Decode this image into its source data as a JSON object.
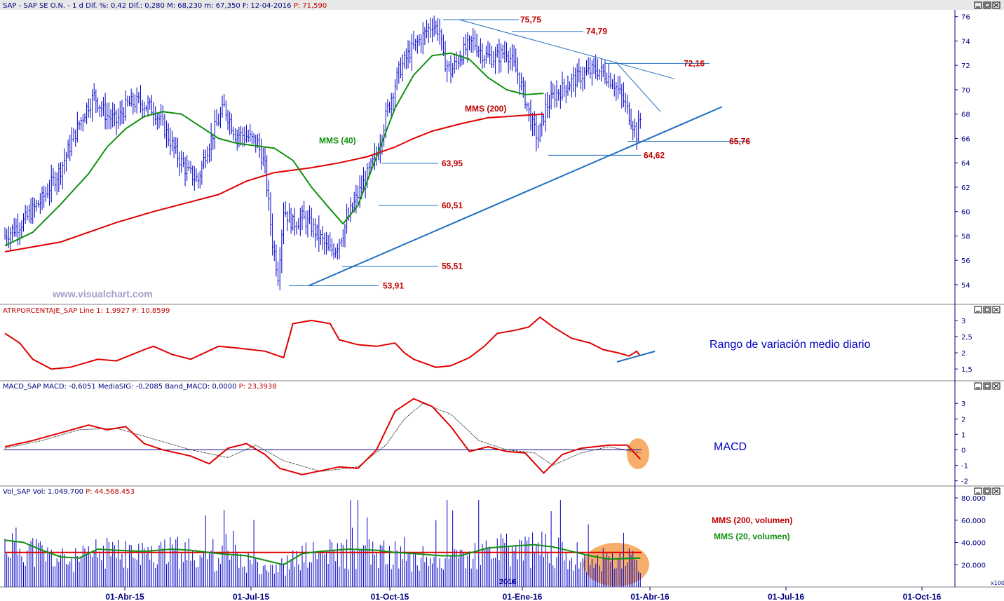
{
  "header": {
    "price": "SAP - SAP SE O.N. - 1 d Dif. %: 0,42 Dif.: 0,280 M: 68,230 m: 67,350 F: 12-04-2016",
    "price_p": "P: 71,590",
    "atr": "ATRPORCENTAJE_SAP Line 1: 1,9927",
    "atr_p": "P: 10,8599",
    "macd": "MACD_SAP MACD: -0,6051 MediaSIG: -0,2085 Band_MACD: 0,0000",
    "macd_p": "P: 23,3938",
    "vol": "Vol_SAP Vol: 1.049.700",
    "vol_p": "P: 44.568.453"
  },
  "watermark": "www.visualchart.com",
  "year_label": "2016",
  "vol_scale": "x100",
  "colors": {
    "price_bars": "#0000c8",
    "mms200": "#e00000",
    "mms40": "#109010",
    "trend": "#1f6fc0",
    "macd": "#e00000",
    "highlight": "#f5a050",
    "note": "#0000c0"
  },
  "chart_data": [
    {
      "type": "line",
      "title": "SAP - SAP SE O.N.",
      "y_ticks": [
        54,
        56,
        58,
        60,
        62,
        64,
        66,
        68,
        70,
        72,
        74,
        76
      ],
      "ylim": [
        52.5,
        76.5
      ],
      "x_ticks": [
        "01-Abr-15",
        "01-Jul-15",
        "01-Oct-15",
        "01-Ene-16",
        "01-Abr-16",
        "01-Jul-16",
        "01-Oct-16"
      ],
      "series": [
        {
          "name": "MMS (40)",
          "points": [
            [
              0,
              57.2
            ],
            [
              15,
              58.3
            ],
            [
              30,
              60.6
            ],
            [
              45,
              63.1
            ],
            [
              55,
              65.3
            ],
            [
              65,
              66.8
            ],
            [
              75,
              67.8
            ],
            [
              85,
              68.2
            ],
            [
              95,
              68.0
            ],
            [
              105,
              67.0
            ],
            [
              115,
              66.0
            ],
            [
              125,
              65.6
            ],
            [
              135,
              65.4
            ],
            [
              145,
              65.2
            ],
            [
              155,
              64.2
            ],
            [
              165,
              62.0
            ],
            [
              175,
              60.2
            ],
            [
              182,
              59.0
            ],
            [
              190,
              60.5
            ],
            [
              200,
              64.5
            ],
            [
              210,
              68.5
            ],
            [
              220,
              71.2
            ],
            [
              230,
              72.8
            ],
            [
              240,
              73.0
            ],
            [
              250,
              72.5
            ],
            [
              260,
              71.0
            ],
            [
              270,
              70.0
            ],
            [
              280,
              69.6
            ],
            [
              290,
              69.7
            ]
          ]
        },
        {
          "name": "MMS (200)",
          "points": [
            [
              0,
              56.7
            ],
            [
              30,
              57.5
            ],
            [
              60,
              59.1
            ],
            [
              80,
              60.0
            ],
            [
              100,
              60.8
            ],
            [
              115,
              61.4
            ],
            [
              130,
              62.5
            ],
            [
              145,
              63.2
            ],
            [
              165,
              63.6
            ],
            [
              180,
              64.0
            ],
            [
              195,
              64.5
            ],
            [
              210,
              65.3
            ],
            [
              220,
              66.0
            ],
            [
              230,
              66.6
            ],
            [
              245,
              67.2
            ],
            [
              260,
              67.7
            ],
            [
              270,
              67.8
            ],
            [
              280,
              67.9
            ],
            [
              290,
              68.0
            ]
          ]
        },
        {
          "name": "price",
          "points": [
            [
              0,
              58.0
            ],
            [
              10,
              59.2
            ],
            [
              20,
              61.0
            ],
            [
              30,
              63.5
            ],
            [
              38,
              66.5
            ],
            [
              44,
              68.5
            ],
            [
              48,
              69.5
            ],
            [
              54,
              68.0
            ],
            [
              60,
              67.4
            ],
            [
              66,
              68.8
            ],
            [
              72,
              69.0
            ],
            [
              80,
              68.4
            ],
            [
              86,
              66.8
            ],
            [
              92,
              64.8
            ],
            [
              98,
              63.3
            ],
            [
              104,
              62.6
            ],
            [
              108,
              64.8
            ],
            [
              113,
              66.8
            ],
            [
              118,
              68.6
            ],
            [
              124,
              66.4
            ],
            [
              130,
              66.2
            ],
            [
              136,
              65.6
            ],
            [
              140,
              63.6
            ],
            [
              144,
              57.5
            ],
            [
              147,
              54.8
            ],
            [
              150,
              60.2
            ],
            [
              155,
              59.0
            ],
            [
              160,
              59.5
            ],
            [
              165,
              58.8
            ],
            [
              170,
              57.8
            ],
            [
              174,
              56.8
            ],
            [
              178,
              57.0
            ],
            [
              182,
              58.3
            ],
            [
              186,
              60.0
            ],
            [
              192,
              62.0
            ],
            [
              200,
              64.6
            ],
            [
              206,
              68.4
            ],
            [
              212,
              71.5
            ],
            [
              218,
              73.1
            ],
            [
              224,
              74.2
            ],
            [
              230,
              75.4
            ],
            [
              234,
              74.8
            ],
            [
              236,
              72.5
            ],
            [
              240,
              71.5
            ],
            [
              246,
              73.0
            ],
            [
              252,
              74.0
            ],
            [
              258,
              72.8
            ],
            [
              264,
              72.6
            ],
            [
              270,
              73.2
            ],
            [
              276,
              71.3
            ],
            [
              280,
              69.3
            ],
            [
              284,
              67.0
            ],
            [
              287,
              66.0
            ],
            [
              291,
              68.5
            ],
            [
              296,
              69.6
            ],
            [
              302,
              70.3
            ],
            [
              306,
              70.8
            ],
            [
              312,
              71.3
            ],
            [
              318,
              71.7
            ],
            [
              324,
              71.2
            ],
            [
              328,
              70.5
            ],
            [
              333,
              69.1
            ],
            [
              337,
              67.6
            ],
            [
              340,
              66.4
            ],
            [
              342,
              67.6
            ]
          ]
        }
      ],
      "levels": [
        75.75,
        74.79,
        72.16,
        65.76,
        64.62,
        63.95,
        60.51,
        55.51,
        53.91
      ],
      "annotations": [
        "MMS (40)",
        "MMS (200)"
      ]
    },
    {
      "type": "line",
      "title": "ATRPORCENTAJE_SAP",
      "y_ticks": [
        "1,5",
        "2",
        "2,5",
        "3"
      ],
      "ylim": [
        1.2,
        3.15
      ],
      "series": [
        {
          "name": "Line 1",
          "points": [
            [
              0,
              2.6
            ],
            [
              8,
              2.3
            ],
            [
              15,
              1.8
            ],
            [
              25,
              1.5
            ],
            [
              35,
              1.55
            ],
            [
              50,
              1.8
            ],
            [
              60,
              1.75
            ],
            [
              75,
              2.1
            ],
            [
              80,
              2.2
            ],
            [
              90,
              1.95
            ],
            [
              100,
              1.8
            ],
            [
              115,
              2.2
            ],
            [
              125,
              2.15
            ],
            [
              140,
              2.05
            ],
            [
              150,
              1.85
            ],
            [
              155,
              2.9
            ],
            [
              165,
              3.0
            ],
            [
              175,
              2.9
            ],
            [
              180,
              2.4
            ],
            [
              190,
              2.25
            ],
            [
              200,
              2.2
            ],
            [
              210,
              2.3
            ],
            [
              215,
              2.0
            ],
            [
              220,
              1.8
            ],
            [
              232,
              1.55
            ],
            [
              240,
              1.6
            ],
            [
              250,
              1.85
            ],
            [
              258,
              2.2
            ],
            [
              265,
              2.6
            ],
            [
              275,
              2.7
            ],
            [
              282,
              2.8
            ],
            [
              288,
              3.1
            ],
            [
              295,
              2.8
            ],
            [
              305,
              2.45
            ],
            [
              315,
              2.3
            ],
            [
              322,
              2.1
            ],
            [
              330,
              2.0
            ],
            [
              336,
              1.9
            ],
            [
              340,
              2.05
            ],
            [
              342,
              1.9
            ]
          ]
        }
      ],
      "annotations": [
        "Rango de variación medio diario"
      ]
    },
    {
      "type": "line",
      "title": "MACD_SAP",
      "y_ticks": [
        -2,
        -1,
        0,
        1,
        2,
        3
      ],
      "ylim": [
        -2.2,
        3.6
      ],
      "series": [
        {
          "name": "MACD",
          "points": [
            [
              0,
              0.2
            ],
            [
              15,
              0.6
            ],
            [
              30,
              1.1
            ],
            [
              45,
              1.6
            ],
            [
              55,
              1.3
            ],
            [
              65,
              1.5
            ],
            [
              75,
              0.4
            ],
            [
              85,
              0.0
            ],
            [
              100,
              -0.4
            ],
            [
              110,
              -0.9
            ],
            [
              120,
              0.1
            ],
            [
              130,
              0.4
            ],
            [
              140,
              -0.3
            ],
            [
              148,
              -1.2
            ],
            [
              160,
              -1.6
            ],
            [
              180,
              -1.1
            ],
            [
              190,
              -1.2
            ],
            [
              200,
              0.0
            ],
            [
              210,
              2.5
            ],
            [
              220,
              3.3
            ],
            [
              230,
              2.8
            ],
            [
              240,
              1.5
            ],
            [
              250,
              -0.1
            ],
            [
              260,
              0.2
            ],
            [
              270,
              -0.1
            ],
            [
              280,
              -0.2
            ],
            [
              290,
              -1.5
            ],
            [
              300,
              -0.3
            ],
            [
              310,
              0.1
            ],
            [
              325,
              0.3
            ],
            [
              335,
              0.3
            ],
            [
              342,
              -0.6
            ]
          ]
        },
        {
          "name": "MediaSIG",
          "points": [
            [
              0,
              0.1
            ],
            [
              20,
              0.6
            ],
            [
              40,
              1.3
            ],
            [
              60,
              1.4
            ],
            [
              80,
              0.7
            ],
            [
              100,
              0.0
            ],
            [
              120,
              -0.5
            ],
            [
              135,
              0.3
            ],
            [
              150,
              -0.7
            ],
            [
              170,
              -1.4
            ],
            [
              190,
              -1.1
            ],
            [
              205,
              0.3
            ],
            [
              215,
              2.0
            ],
            [
              225,
              3.0
            ],
            [
              240,
              2.3
            ],
            [
              255,
              0.6
            ],
            [
              270,
              0.0
            ],
            [
              285,
              -0.2
            ],
            [
              295,
              -1.0
            ],
            [
              310,
              -0.2
            ],
            [
              325,
              0.2
            ],
            [
              342,
              -0.2
            ]
          ]
        }
      ],
      "annotations": [
        "MACD"
      ]
    },
    {
      "type": "bar",
      "title": "Vol_SAP",
      "y_ticks": [
        "20.000",
        "40.000",
        "60.000",
        "80.000"
      ],
      "ylim": [
        0,
        80000
      ],
      "series": [
        {
          "name": "MMS (200, volumen)",
          "value": 31000
        },
        {
          "name": "MMS (20, volumen)",
          "points": [
            [
              0,
              42000
            ],
            [
              10,
              40000
            ],
            [
              20,
              33000
            ],
            [
              30,
              27000
            ],
            [
              40,
              26000
            ],
            [
              50,
              34000
            ],
            [
              60,
              33000
            ],
            [
              75,
              32000
            ],
            [
              90,
              34000
            ],
            [
              100,
              33000
            ],
            [
              115,
              30000
            ],
            [
              130,
              28000
            ],
            [
              140,
              24000
            ],
            [
              150,
              20000
            ],
            [
              160,
              30000
            ],
            [
              170,
              32000
            ],
            [
              185,
              34000
            ],
            [
              200,
              33000
            ],
            [
              210,
              31000
            ],
            [
              220,
              30000
            ],
            [
              235,
              28000
            ],
            [
              245,
              28000
            ],
            [
              260,
              35000
            ],
            [
              275,
              37000
            ],
            [
              285,
              38000
            ],
            [
              295,
              36000
            ],
            [
              305,
              32000
            ],
            [
              315,
              28000
            ],
            [
              325,
              25000
            ],
            [
              342,
              26000
            ]
          ]
        }
      ],
      "annotations": [
        "MMS (200, volumen)",
        "MMS (20, volumen)"
      ]
    }
  ]
}
